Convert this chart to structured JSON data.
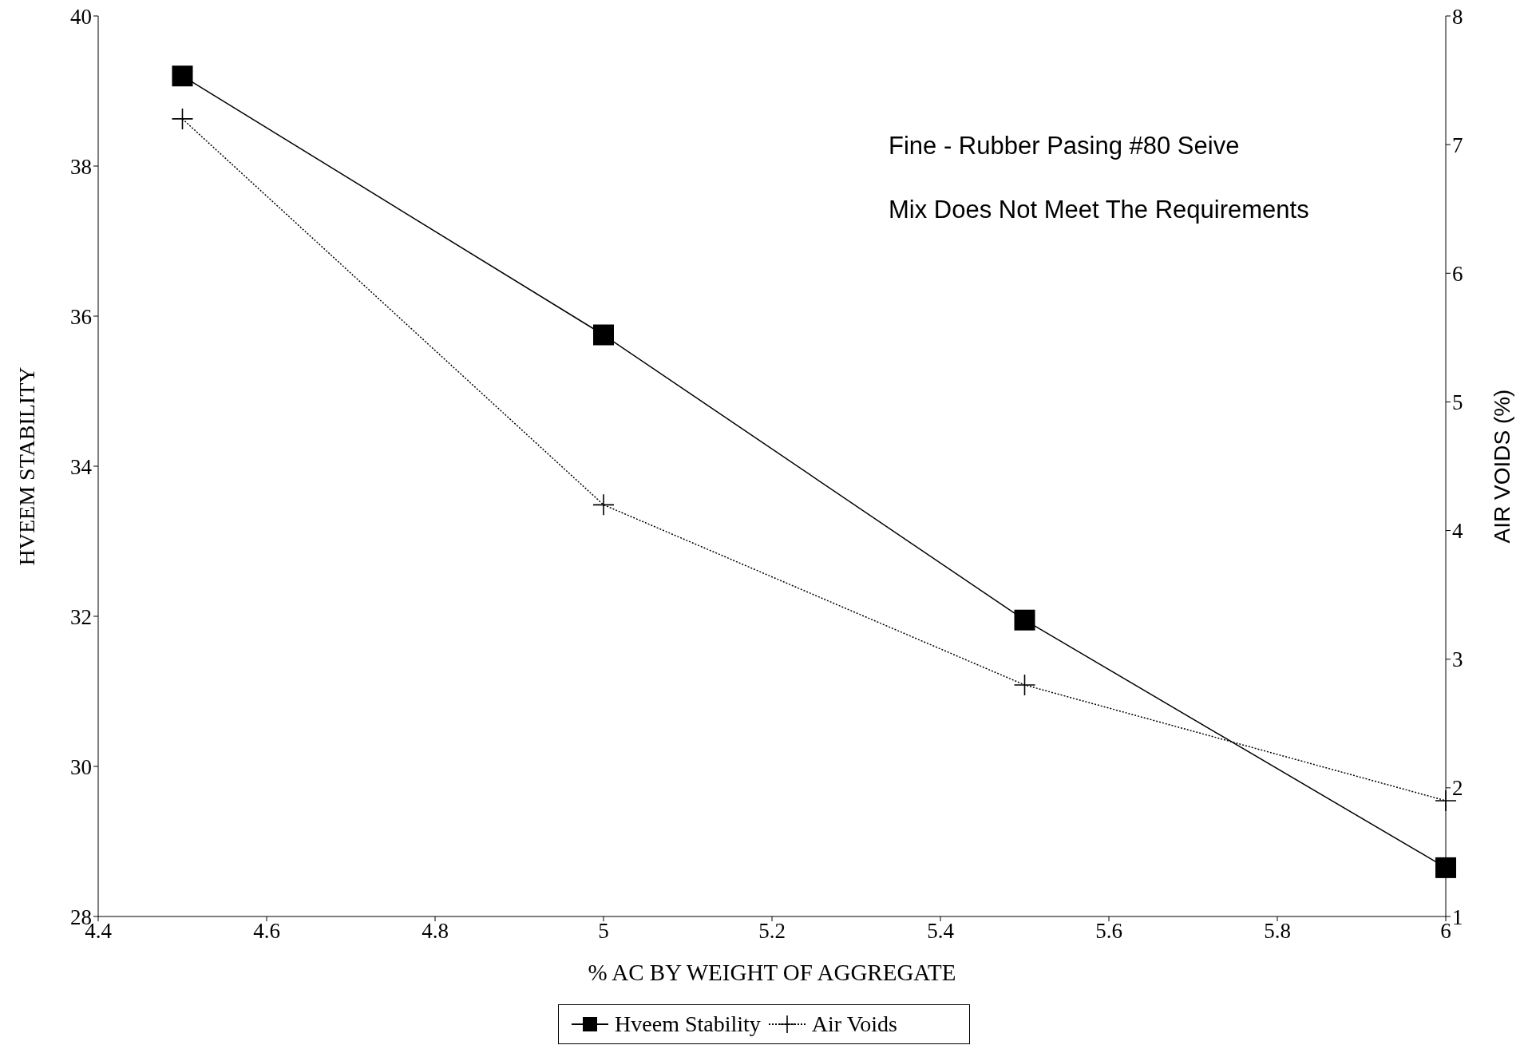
{
  "chart_data": {
    "type": "line",
    "xlabel": "% AC BY WEIGHT OF AGGREGATE",
    "ylabel": "HVEEM STABILITY",
    "y2label": "AIR VOIDS (%)",
    "x": [
      4.5,
      5,
      5.5,
      6
    ],
    "series": [
      {
        "name": "Hveem Stability",
        "color": "#000000",
        "values": [
          39.2,
          35.75,
          31.95,
          28.65
        ],
        "marker": "square",
        "line_style": "solid"
      },
      {
        "name": "Air Voids",
        "color": "#000000",
        "values": [
          7.2,
          4.2,
          2.8,
          1.9
        ],
        "axis": "y2",
        "marker": "cross",
        "line_style": "dotted"
      }
    ],
    "xlim": [
      4.4,
      6
    ],
    "xticks": [
      4.4,
      4.6,
      4.8,
      5,
      5.2,
      5.4,
      5.6,
      5.8,
      6
    ],
    "ylim": [
      28,
      40
    ],
    "yticks": [
      28,
      30,
      32,
      34,
      36,
      38,
      40
    ],
    "y2lim": [
      1,
      8
    ],
    "y2ticks": [
      1,
      2,
      3,
      4,
      5,
      6,
      7,
      8
    ],
    "annotations": [
      "Fine - Rubber Pasing #80 Seive",
      "Mix Does Not Meet The Requirements"
    ],
    "legend": "bottom"
  }
}
